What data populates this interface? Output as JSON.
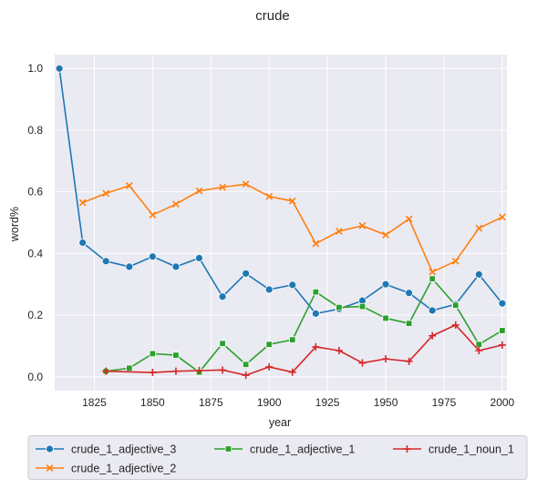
{
  "chart_data": {
    "type": "line",
    "title": "crude",
    "xlabel": "year",
    "ylabel": "word%",
    "xlim": [
      1808,
      2002
    ],
    "ylim": [
      -0.045,
      1.045
    ],
    "xticks": [
      1825,
      1850,
      1875,
      1900,
      1925,
      1950,
      1975,
      2000
    ],
    "yticks": [
      0.0,
      0.2,
      0.4,
      0.6,
      0.8,
      1.0
    ],
    "grid": true,
    "legend_position": "bottom",
    "series": [
      {
        "name": "crude_1_adjective_3",
        "color": "#1f77b4",
        "marker": "circle",
        "x": [
          1810,
          1820,
          1830,
          1840,
          1850,
          1860,
          1870,
          1880,
          1890,
          1900,
          1910,
          1920,
          1930,
          1940,
          1950,
          1960,
          1970,
          1980,
          1990,
          2000
        ],
        "y": [
          1.0,
          0.435,
          0.375,
          0.357,
          0.39,
          0.357,
          0.385,
          0.26,
          0.335,
          0.283,
          0.298,
          0.205,
          0.22,
          0.247,
          0.3,
          0.272,
          0.215,
          0.235,
          0.332,
          0.238
        ]
      },
      {
        "name": "crude_1_adjective_2",
        "color": "#ff7f0e",
        "marker": "x",
        "x": [
          1820,
          1830,
          1840,
          1850,
          1860,
          1870,
          1880,
          1890,
          1900,
          1910,
          1920,
          1930,
          1940,
          1950,
          1960,
          1970,
          1980,
          1990,
          2000
        ],
        "y": [
          0.565,
          0.595,
          0.62,
          0.525,
          0.56,
          0.603,
          0.615,
          0.625,
          0.585,
          0.57,
          0.432,
          0.472,
          0.49,
          0.46,
          0.512,
          0.34,
          0.375,
          0.482,
          0.518
        ]
      },
      {
        "name": "crude_1_adjective_1",
        "color": "#2ca02c",
        "marker": "square",
        "x": [
          1830,
          1840,
          1850,
          1860,
          1870,
          1880,
          1890,
          1900,
          1910,
          1920,
          1930,
          1940,
          1950,
          1960,
          1970,
          1980,
          1990,
          2000
        ],
        "y": [
          0.018,
          0.028,
          0.075,
          0.07,
          0.015,
          0.108,
          0.04,
          0.105,
          0.12,
          0.275,
          0.225,
          0.228,
          0.19,
          0.173,
          0.318,
          0.232,
          0.105,
          0.15
        ]
      },
      {
        "name": "crude_1_noun_1",
        "color": "#d62728",
        "marker": "plus",
        "x": [
          1830,
          1850,
          1860,
          1870,
          1880,
          1890,
          1900,
          1910,
          1920,
          1930,
          1940,
          1950,
          1960,
          1970,
          1980,
          1990,
          2000
        ],
        "y": [
          0.018,
          0.014,
          0.018,
          0.02,
          0.022,
          0.005,
          0.032,
          0.015,
          0.097,
          0.085,
          0.045,
          0.058,
          0.05,
          0.133,
          0.168,
          0.085,
          0.103
        ]
      }
    ],
    "legend_order": [
      "crude_1_adjective_3",
      "crude_1_adjective_1",
      "crude_1_noun_1",
      "crude_1_adjective_2"
    ]
  }
}
